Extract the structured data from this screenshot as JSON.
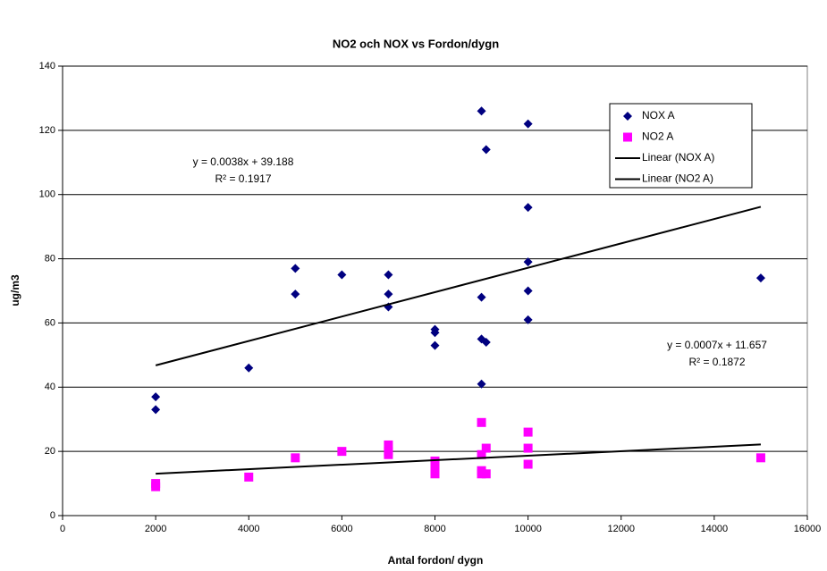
{
  "chart_data": {
    "type": "scatter",
    "title": "NO2 och NOX vs Fordon/dygn",
    "x_label": "Antal fordon/ dygn",
    "y_label": "ug/m3",
    "xlim": [
      0,
      16000
    ],
    "xticks": [
      0,
      2000,
      4000,
      6000,
      8000,
      10000,
      12000,
      14000,
      16000
    ],
    "ylim": [
      0,
      140
    ],
    "yticks": [
      0,
      20,
      40,
      60,
      80,
      100,
      120,
      140
    ],
    "grid": true,
    "legend": "upper right",
    "series": [
      {
        "name": "NOX A",
        "type": "scatter",
        "marker": "diamond",
        "color": "#000080",
        "x": [
          2000,
          2000,
          4000,
          5000,
          5000,
          6000,
          7000,
          7000,
          7000,
          8000,
          8000,
          8000,
          9000,
          9000,
          9000,
          9000,
          9100,
          9100,
          10000,
          10000,
          10000,
          10000,
          10000,
          15000
        ],
        "values": [
          37,
          33,
          46,
          77,
          69,
          75,
          75,
          69,
          65,
          58,
          57,
          53,
          126,
          68,
          55,
          41,
          114,
          54,
          122,
          96,
          79,
          70,
          61,
          74
        ]
      },
      {
        "name": "NO2 A",
        "type": "scatter",
        "marker": "square",
        "color": "#ff00ff",
        "x": [
          2000,
          2000,
          4000,
          5000,
          6000,
          7000,
          7000,
          7000,
          8000,
          8000,
          8000,
          9000,
          9000,
          9000,
          9000,
          9100,
          9100,
          10000,
          10000,
          10000,
          15000
        ],
        "values": [
          10,
          9,
          12,
          18,
          20,
          22,
          20,
          19,
          17,
          15,
          13,
          29,
          19,
          14,
          13,
          21,
          13,
          26,
          21,
          16,
          18
        ]
      },
      {
        "name": "Linear (NOX A)",
        "type": "line",
        "color": "#000000",
        "x": [
          2000,
          15000
        ],
        "values": [
          46.788,
          96.188
        ]
      },
      {
        "name": "Linear (NO2 A)",
        "type": "line",
        "color": "#000000",
        "x": [
          2000,
          15000
        ],
        "values": [
          13.057,
          22.157
        ]
      }
    ],
    "annotations": [
      {
        "equation": "y = 0.0038x + 39.188",
        "r2": "R² = 0.1917"
      },
      {
        "equation": "y = 0.0007x + 11.657",
        "r2": "R² = 0.1872"
      }
    ]
  }
}
